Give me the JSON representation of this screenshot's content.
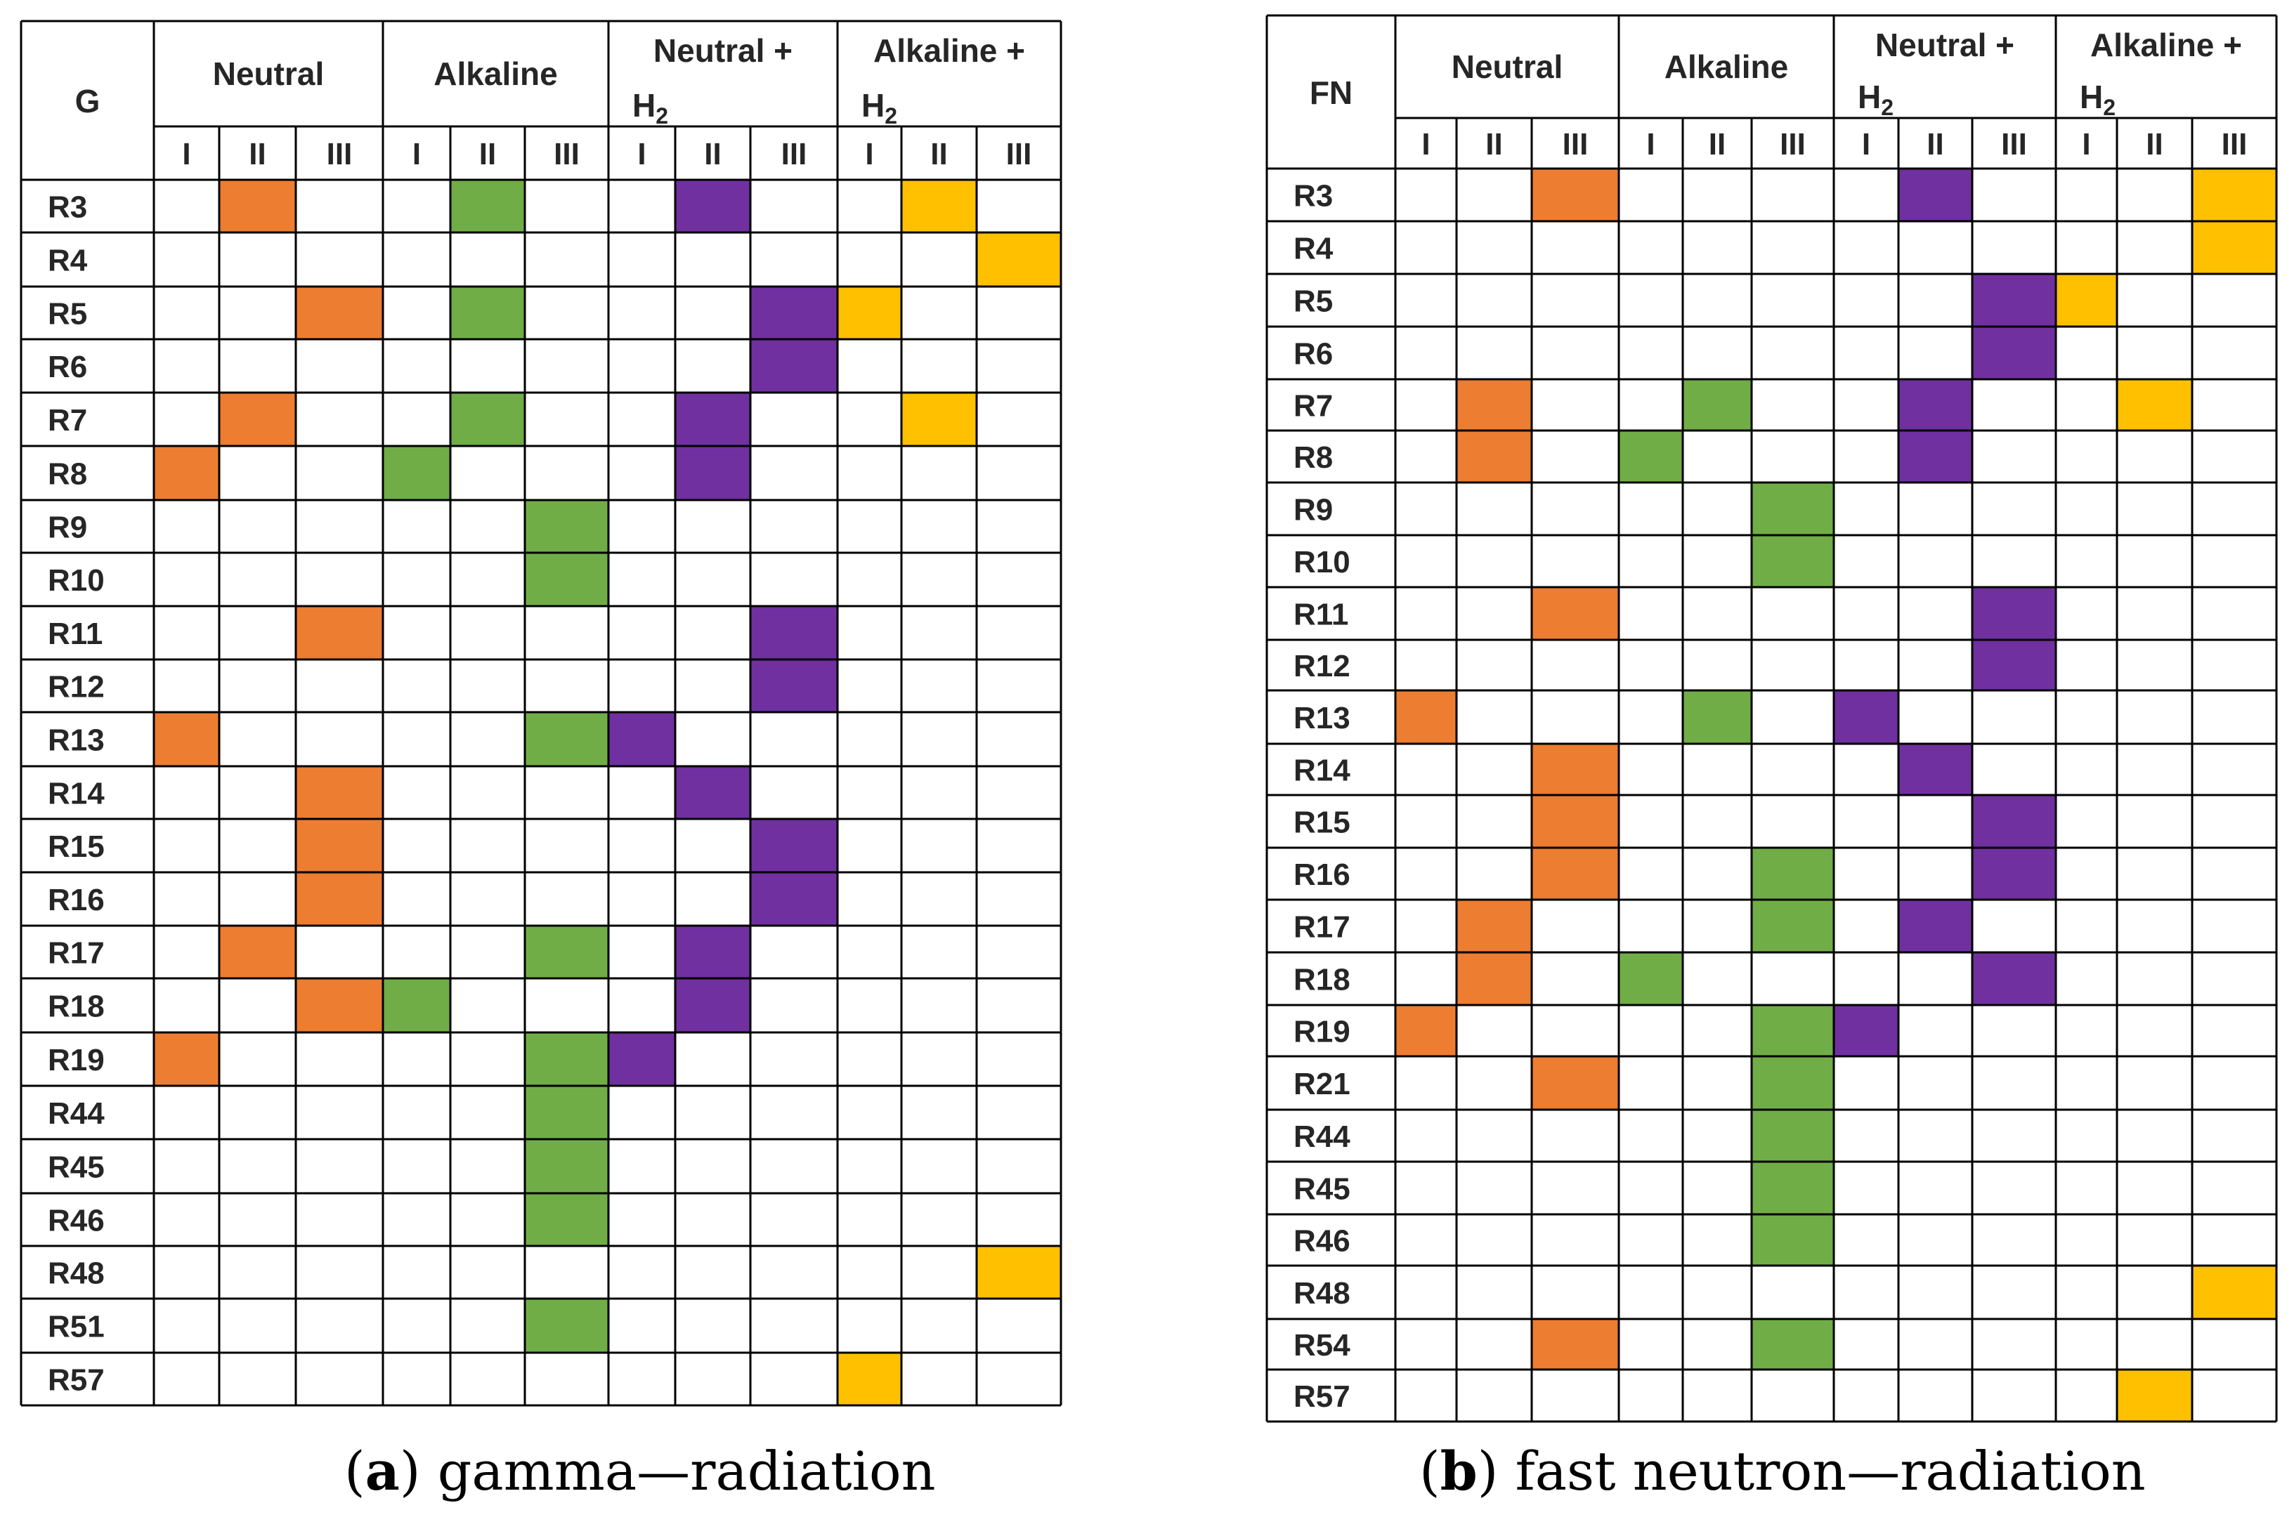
{
  "colors": {
    "orange": "#ED7D31",
    "green": "#70AD47",
    "purple": "#7030A0",
    "yellow": "#FFC000",
    "grid": "#000000"
  },
  "chart_data": [
    {
      "type": "table",
      "id": "gamma",
      "corner_label": "G",
      "caption_letter": "a",
      "caption_text": " gamma—radiation",
      "groups": [
        {
          "label": "Neutral",
          "sub": "",
          "color": "orange"
        },
        {
          "label": "Alkaline",
          "sub": "",
          "color": "green"
        },
        {
          "label": "Neutral +",
          "sub": "H",
          "subscript": "2",
          "color": "purple"
        },
        {
          "label": "Alkaline +",
          "sub": "H",
          "subscript": "2",
          "color": "yellow"
        }
      ],
      "subcolumns": [
        "I",
        "II",
        "III"
      ],
      "rows": [
        {
          "label": "R3",
          "marks": [
            2,
            2,
            2,
            2
          ]
        },
        {
          "label": "R4",
          "marks": [
            0,
            0,
            0,
            3
          ]
        },
        {
          "label": "R5",
          "marks": [
            3,
            2,
            3,
            1
          ]
        },
        {
          "label": "R6",
          "marks": [
            0,
            0,
            3,
            0
          ]
        },
        {
          "label": "R7",
          "marks": [
            2,
            2,
            2,
            2
          ]
        },
        {
          "label": "R8",
          "marks": [
            1,
            1,
            2,
            0
          ]
        },
        {
          "label": "R9",
          "marks": [
            0,
            3,
            0,
            0
          ]
        },
        {
          "label": "R10",
          "marks": [
            0,
            3,
            0,
            0
          ]
        },
        {
          "label": "R11",
          "marks": [
            3,
            0,
            3,
            0
          ]
        },
        {
          "label": "R12",
          "marks": [
            0,
            0,
            3,
            0
          ]
        },
        {
          "label": "R13",
          "marks": [
            1,
            3,
            1,
            0
          ]
        },
        {
          "label": "R14",
          "marks": [
            3,
            0,
            2,
            0
          ]
        },
        {
          "label": "R15",
          "marks": [
            3,
            0,
            3,
            0
          ]
        },
        {
          "label": "R16",
          "marks": [
            3,
            0,
            3,
            0
          ]
        },
        {
          "label": "R17",
          "marks": [
            2,
            3,
            2,
            0
          ]
        },
        {
          "label": "R18",
          "marks": [
            3,
            1,
            2,
            0
          ]
        },
        {
          "label": "R19",
          "marks": [
            1,
            3,
            1,
            0
          ]
        },
        {
          "label": "R44",
          "marks": [
            0,
            3,
            0,
            0
          ]
        },
        {
          "label": "R45",
          "marks": [
            0,
            3,
            0,
            0
          ]
        },
        {
          "label": "R46",
          "marks": [
            0,
            3,
            0,
            0
          ]
        },
        {
          "label": "R48",
          "marks": [
            0,
            0,
            0,
            3
          ]
        },
        {
          "label": "R51",
          "marks": [
            0,
            3,
            0,
            0
          ]
        },
        {
          "label": "R57",
          "marks": [
            0,
            0,
            0,
            1
          ]
        }
      ]
    },
    {
      "type": "table",
      "id": "fast-neutron",
      "corner_label": "FN",
      "caption_letter": "b",
      "caption_text": " fast neutron—radiation",
      "groups": [
        {
          "label": "Neutral",
          "sub": "",
          "color": "orange"
        },
        {
          "label": "Alkaline",
          "sub": "",
          "color": "green"
        },
        {
          "label": "Neutral +",
          "sub": "H",
          "subscript": "2",
          "color": "purple"
        },
        {
          "label": "Alkaline +",
          "sub": "H",
          "subscript": "2",
          "color": "yellow"
        }
      ],
      "subcolumns": [
        "I",
        "II",
        "III"
      ],
      "rows": [
        {
          "label": "R3",
          "marks": [
            3,
            0,
            2,
            3
          ]
        },
        {
          "label": "R4",
          "marks": [
            0,
            0,
            0,
            3
          ]
        },
        {
          "label": "R5",
          "marks": [
            0,
            0,
            3,
            1
          ]
        },
        {
          "label": "R6",
          "marks": [
            0,
            0,
            3,
            0
          ]
        },
        {
          "label": "R7",
          "marks": [
            2,
            2,
            2,
            2
          ]
        },
        {
          "label": "R8",
          "marks": [
            2,
            1,
            2,
            0
          ]
        },
        {
          "label": "R9",
          "marks": [
            0,
            3,
            0,
            0
          ]
        },
        {
          "label": "R10",
          "marks": [
            0,
            3,
            0,
            0
          ]
        },
        {
          "label": "R11",
          "marks": [
            3,
            0,
            3,
            0
          ]
        },
        {
          "label": "R12",
          "marks": [
            0,
            0,
            3,
            0
          ]
        },
        {
          "label": "R13",
          "marks": [
            1,
            2,
            1,
            0
          ]
        },
        {
          "label": "R14",
          "marks": [
            3,
            0,
            2,
            0
          ]
        },
        {
          "label": "R15",
          "marks": [
            3,
            0,
            3,
            0
          ]
        },
        {
          "label": "R16",
          "marks": [
            3,
            3,
            3,
            0
          ]
        },
        {
          "label": "R17",
          "marks": [
            2,
            3,
            2,
            0
          ]
        },
        {
          "label": "R18",
          "marks": [
            2,
            1,
            3,
            0
          ]
        },
        {
          "label": "R19",
          "marks": [
            1,
            3,
            1,
            0
          ]
        },
        {
          "label": "R21",
          "marks": [
            3,
            3,
            0,
            0
          ]
        },
        {
          "label": "R44",
          "marks": [
            0,
            3,
            0,
            0
          ]
        },
        {
          "label": "R45",
          "marks": [
            0,
            3,
            0,
            0
          ]
        },
        {
          "label": "R46",
          "marks": [
            0,
            3,
            0,
            0
          ]
        },
        {
          "label": "R48",
          "marks": [
            0,
            0,
            0,
            3
          ]
        },
        {
          "label": "R54",
          "marks": [
            3,
            3,
            0,
            0
          ]
        },
        {
          "label": "R57",
          "marks": [
            0,
            0,
            0,
            2
          ]
        }
      ]
    }
  ]
}
